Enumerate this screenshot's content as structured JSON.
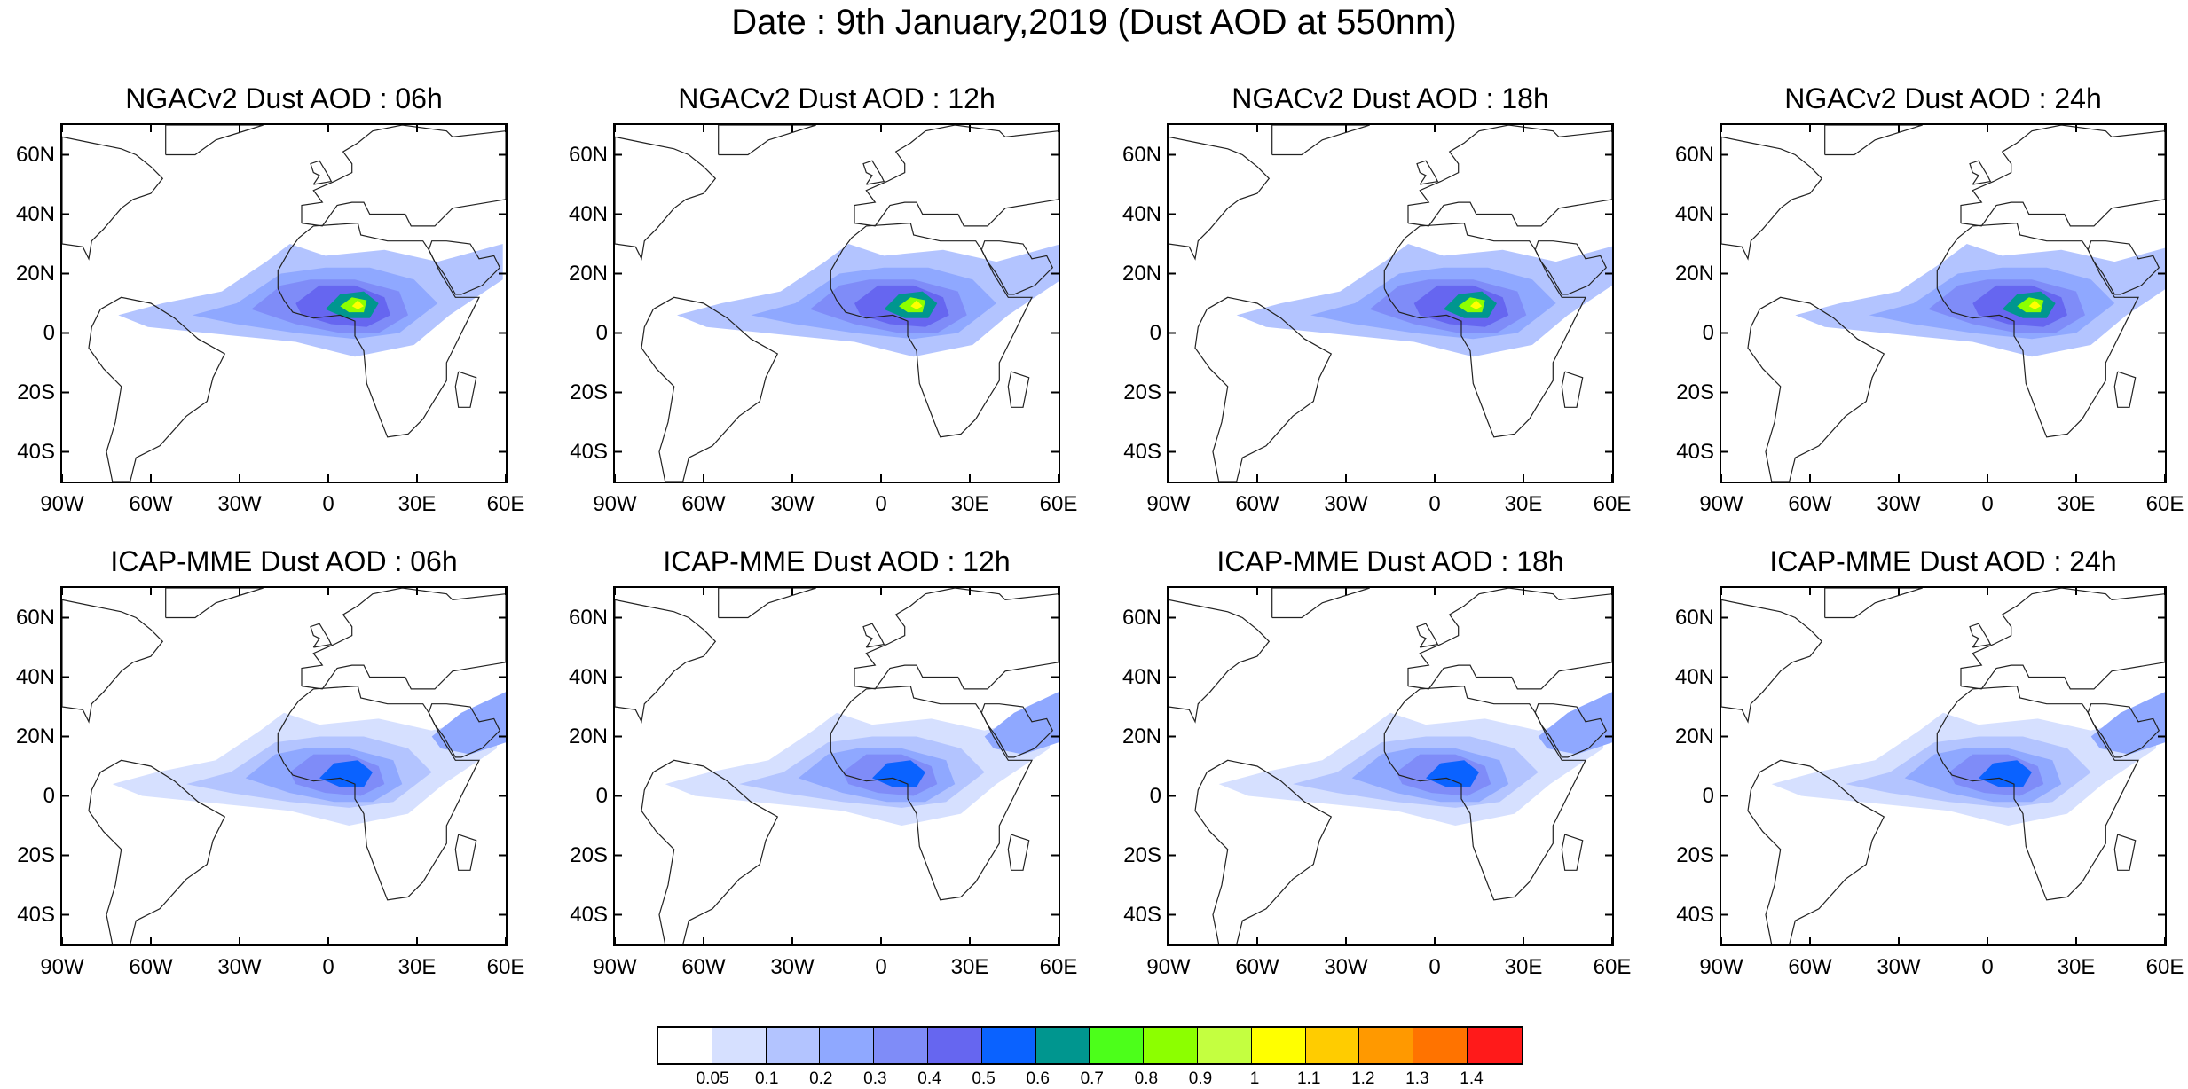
{
  "title": "Date : 9th January,2019 (Dust AOD at 550nm)",
  "panels": [
    {
      "title": "NGACv2 Dust AOD : 06h",
      "shift": 0
    },
    {
      "title": "NGACv2 Dust AOD : 12h",
      "shift": 1
    },
    {
      "title": "NGACv2 Dust AOD : 18h",
      "shift": 2
    },
    {
      "title": "NGACv2 Dust AOD : 24h",
      "shift": 3
    },
    {
      "title": "ICAP-MME Dust AOD : 06h",
      "shift": 0
    },
    {
      "title": "ICAP-MME Dust AOD : 12h",
      "shift": 1
    },
    {
      "title": "ICAP-MME Dust AOD : 18h",
      "shift": 2
    },
    {
      "title": "ICAP-MME Dust AOD : 24h",
      "shift": 3
    }
  ],
  "lat_ticks": [
    "60N",
    "40N",
    "20N",
    "0",
    "20S",
    "40S"
  ],
  "lat_values": [
    60,
    40,
    20,
    0,
    -20,
    -40
  ],
  "lon_ticks": [
    "90W",
    "60W",
    "30W",
    "0",
    "30E",
    "60E"
  ],
  "lon_values": [
    -90,
    -60,
    -30,
    0,
    30,
    60
  ],
  "lon_range": [
    -90,
    60
  ],
  "lat_range": [
    -50,
    70
  ],
  "colorbar": {
    "colors": [
      "#ffffff",
      "#d6e0ff",
      "#b3c4ff",
      "#8fa8ff",
      "#7f8cf8",
      "#6666f0",
      "#0a62ff",
      "#00968f",
      "#4cff1a",
      "#8cff00",
      "#c4ff40",
      "#ffff00",
      "#ffcc00",
      "#ff9900",
      "#ff7300",
      "#ff1a1a"
    ],
    "labels": [
      "0.05",
      "0.1",
      "0.2",
      "0.3",
      "0.4",
      "0.5",
      "0.6",
      "0.7",
      "0.8",
      "0.9",
      "1",
      "1.1",
      "1.2",
      "1.3",
      "1.4"
    ]
  }
}
